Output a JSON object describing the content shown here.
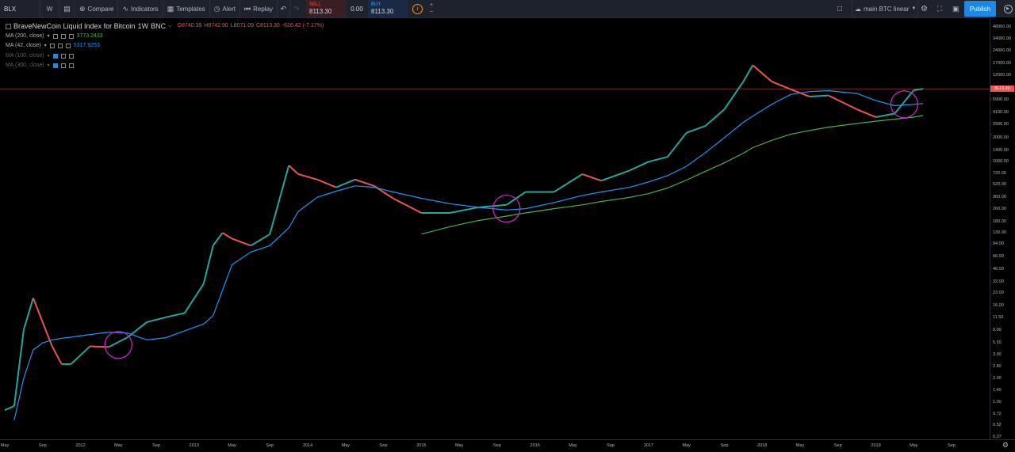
{
  "toolbar": {
    "symbol": "BLX",
    "interval": "W",
    "compare": "Compare",
    "indicators": "Indicators",
    "templates": "Templates",
    "alert": "Alert",
    "replay": "Replay",
    "sell_label": "SELL",
    "sell_price": "8113.30",
    "spread": "0.00",
    "buy_label": "BUY",
    "buy_price": "8113.30",
    "layout_name": "main BTC linear",
    "publish": "Publish",
    "icons": [
      "bars-style-icon",
      "compare-plus-icon",
      "indicators-icon",
      "templates-icon",
      "alert-clock-icon",
      "replay-icon",
      "undo-icon",
      "redo-icon",
      "info-icon",
      "fullscreen-icon",
      "snapshot-icon",
      "cloud-icon",
      "settings-gear-icon"
    ]
  },
  "legend": {
    "title": "BraveNewCoin Liquid Index for Bitcoin",
    "interval": "1W",
    "exchange": "BNC",
    "ohlc": {
      "o": "O8740.39",
      "h": "H8742.90",
      "l": "L8071.09",
      "c": "C8113.30",
      "change": "-626.42 (-7.17%)"
    },
    "indicators": [
      {
        "label": "MA (200, close)",
        "value": "3773.2433",
        "color": "#4caf50"
      },
      {
        "label": "MA (42, close)",
        "value": "5317.9253",
        "color": "#2196f3"
      },
      {
        "label": "MA (100, close)",
        "value": "",
        "color": "#5d606b"
      },
      {
        "label": "MA (300, close)",
        "value": "",
        "color": "#5d606b"
      }
    ]
  },
  "price_axis": {
    "labels": [
      "48000.00",
      "34000.00",
      "24000.00",
      "17000.00",
      "12000.00",
      "5900.00",
      "4100.00",
      "2900.00",
      "2000.00",
      "1400.00",
      "1000.00",
      "720.00",
      "520.00",
      "360.00",
      "260.00",
      "180.00",
      "130.00",
      "94.00",
      "66.00",
      "46.00",
      "32.00",
      "23.00",
      "16.00",
      "11.50",
      "8.00",
      "5.50",
      "3.90",
      "2.80",
      "2.00",
      "1.40",
      "1.00",
      "0.72",
      "0.52",
      "0.37"
    ],
    "current_price_tag": "8113.30",
    "current_price_color": "#ef5350",
    "scale": "log"
  },
  "time_axis": {
    "labels": [
      "May",
      "Sep",
      "2012",
      "May",
      "Sep",
      "2013",
      "May",
      "Sep",
      "2014",
      "May",
      "Sep",
      "2015",
      "May",
      "Sep",
      "2016",
      "May",
      "Sep",
      "2017",
      "May",
      "Sep",
      "2018",
      "May",
      "Sep",
      "2019",
      "May",
      "Sep"
    ]
  },
  "chart_data": {
    "type": "line",
    "title": "BraveNewCoin Liquid Index for Bitcoin",
    "yscale": "log",
    "ylim": [
      0.37,
      48000
    ],
    "x": [
      "2011-05",
      "2011-06",
      "2011-07",
      "2011-08",
      "2011-09",
      "2011-10",
      "2011-11",
      "2011-12",
      "2012-02",
      "2012-04",
      "2012-06",
      "2012-08",
      "2012-10",
      "2012-12",
      "2013-02",
      "2013-03",
      "2013-04",
      "2013-05",
      "2013-07",
      "2013-09",
      "2013-11",
      "2013-12",
      "2014-02",
      "2014-04",
      "2014-06",
      "2014-08",
      "2014-10",
      "2015-01",
      "2015-04",
      "2015-07",
      "2015-10",
      "2015-12",
      "2016-03",
      "2016-06",
      "2016-08",
      "2016-11",
      "2017-01",
      "2017-03",
      "2017-05",
      "2017-07",
      "2017-09",
      "2017-11",
      "2017-12",
      "2018-02",
      "2018-04",
      "2018-06",
      "2018-08",
      "2018-11",
      "2019-01",
      "2019-03",
      "2019-05",
      "2019-06"
    ],
    "series": [
      {
        "name": "",
        "values": [
          0.8,
          0.9,
          8,
          20,
          10,
          5,
          3,
          3,
          5,
          4.9,
          6.5,
          10,
          11.5,
          13,
          30,
          90,
          130,
          110,
          90,
          125,
          900,
          700,
          600,
          480,
          600,
          500,
          350,
          230,
          230,
          270,
          290,
          420,
          420,
          700,
          580,
          780,
          1000,
          1150,
          2300,
          2800,
          4500,
          10000,
          16000,
          10000,
          8000,
          6500,
          6700,
          4500,
          3600,
          4000,
          7800,
          8113.3
        ]
      },
      {
        "name": "",
        "values": [
          null,
          0.6,
          2,
          4.5,
          5.5,
          6,
          6.3,
          6.5,
          7,
          7.5,
          7.3,
          6,
          6.4,
          7.8,
          9.5,
          12,
          25,
          52,
          75,
          90,
          150,
          240,
          360,
          430,
          500,
          480,
          420,
          350,
          300,
          270,
          250,
          260,
          310,
          380,
          420,
          480,
          560,
          670,
          880,
          1300,
          2000,
          3100,
          3700,
          5200,
          6900,
          7500,
          7700,
          7100,
          5800,
          5000,
          5200,
          5317.9
        ]
      },
      {
        "name": "",
        "values": [
          null,
          null,
          null,
          null,
          null,
          null,
          null,
          null,
          null,
          null,
          null,
          null,
          null,
          null,
          null,
          null,
          null,
          null,
          null,
          null,
          null,
          null,
          null,
          null,
          null,
          null,
          null,
          125,
          155,
          185,
          210,
          230,
          260,
          290,
          320,
          360,
          400,
          470,
          590,
          760,
          970,
          1280,
          1500,
          1850,
          2200,
          2450,
          2700,
          3000,
          3200,
          3400,
          3600,
          3773.2
        ]
      }
    ],
    "series_colors": [
      "#26a69a",
      "#2196f3",
      "#4caf50"
    ],
    "highlights": [
      {
        "x": "2012-05",
        "y": 5.2
      },
      {
        "x": "2015-10",
        "y": 260
      },
      {
        "x": "2019-04",
        "y": 5200
      }
    ],
    "highlight_color": "#c028c4",
    "grid": false
  }
}
